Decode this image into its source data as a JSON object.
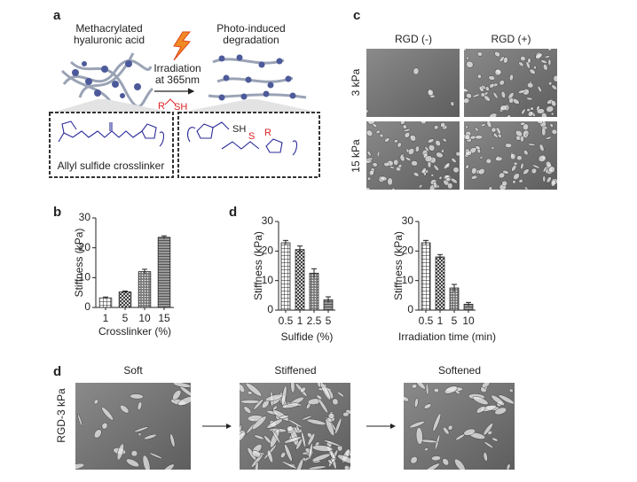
{
  "panel_labels": [
    "a",
    "b",
    "c",
    "d",
    "d"
  ],
  "schematic": {
    "left_title": [
      "Methacrylated",
      "hyaluronic acid"
    ],
    "right_title": [
      "Photo-induced",
      "degradation"
    ],
    "irradiation": [
      "Irradiation",
      "at 365nm"
    ],
    "reagent": [
      "R",
      "SH"
    ],
    "left_box_caption": "Allyl sulfide crosslinker",
    "right_box_labels": [
      "SH",
      "S",
      "R"
    ]
  },
  "micrographs_c": {
    "columns": [
      "RGD (-)",
      "RGD (+)"
    ],
    "rows": [
      "3 kPa",
      "15 kPa"
    ]
  },
  "micrographs_d": {
    "row_label": "RGD-3 kPa",
    "columns": [
      "Soft",
      "Stiffened",
      "Softened"
    ]
  },
  "chart_data": [
    {
      "type": "bar",
      "ylabel": "Stiffness (kPa)",
      "xlabel": "Crosslinker (%)",
      "categories": [
        "1",
        "5",
        "10",
        "15"
      ],
      "values": [
        3.2,
        5.2,
        12,
        23.5
      ],
      "errors": [
        0.3,
        0.3,
        0.8,
        0.5
      ],
      "ylim": [
        0,
        30
      ],
      "yticks": [
        0,
        10,
        20,
        30
      ],
      "color": "#222222"
    },
    {
      "type": "bar",
      "ylabel": "Stiffness (kPa)",
      "xlabel": "Sulfide (%)",
      "categories": [
        "0.5",
        "1",
        "2.5",
        "5"
      ],
      "values": [
        22.8,
        20.5,
        12.5,
        3.5
      ],
      "errors": [
        0.8,
        1.2,
        1.5,
        1
      ],
      "ylim": [
        0,
        30
      ],
      "yticks": [
        0,
        10,
        20,
        30
      ],
      "color": "#222222"
    },
    {
      "type": "bar",
      "ylabel": "Stiffness (kPa)",
      "xlabel": "Irradiation time (min)",
      "categories": [
        "0.5",
        "1",
        "5",
        "10"
      ],
      "values": [
        22.8,
        18,
        7.5,
        2
      ],
      "errors": [
        0.8,
        0.8,
        1.2,
        0.6
      ],
      "ylim": [
        0,
        30
      ],
      "yticks": [
        0,
        10,
        20,
        30
      ],
      "color": "#222222"
    }
  ]
}
